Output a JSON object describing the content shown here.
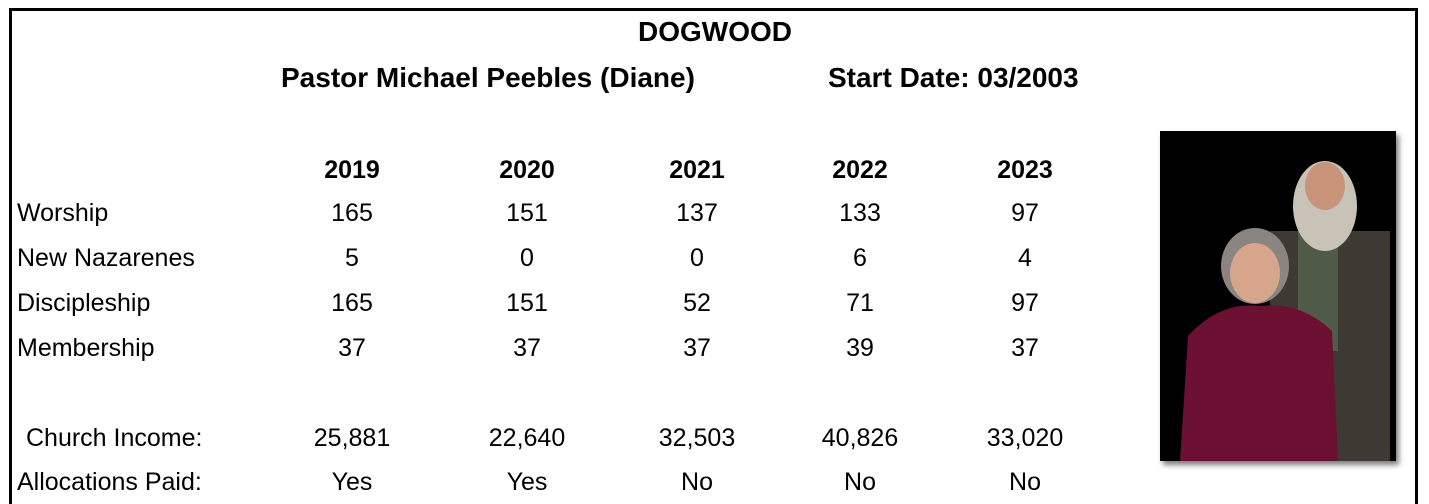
{
  "header": {
    "title": "DOGWOOD",
    "pastor": "Pastor Michael Peebles (Diane)",
    "start_date": "Start Date: 03/2003"
  },
  "table": {
    "columns": [
      "2019",
      "2020",
      "2021",
      "2022",
      "2023"
    ],
    "rows": [
      {
        "label": "Worship",
        "values": [
          "165",
          "151",
          "137",
          "133",
          "97"
        ]
      },
      {
        "label": "New Nazarenes",
        "values": [
          "5",
          "0",
          "0",
          "6",
          "4"
        ]
      },
      {
        "label": "Discipleship",
        "values": [
          "165",
          "151",
          "52",
          "71",
          "97"
        ]
      },
      {
        "label": "Membership",
        "values": [
          "37",
          "37",
          "37",
          "39",
          "37"
        ]
      },
      {
        "label": "Church Income:",
        "values": [
          "25,881",
          "22,640",
          "32,503",
          "40,826",
          "33,020"
        ]
      },
      {
        "label": "Allocations Paid:",
        "values": [
          "Yes",
          "Yes",
          "No",
          "No",
          "No"
        ]
      }
    ]
  }
}
